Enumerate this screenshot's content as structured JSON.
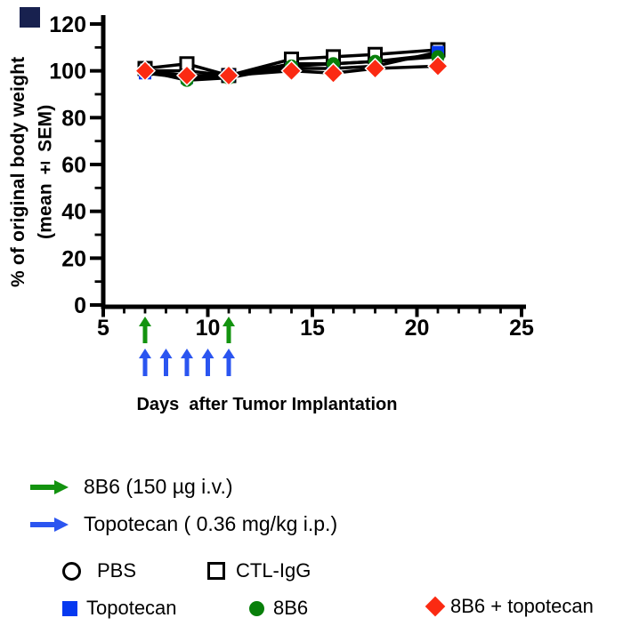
{
  "figure": {
    "x_axis_title": "Days  after Tumor Implantation",
    "y_axis_title_line1": "% of original body weight",
    "y_axis_title_line2": "(mean ± SEM)"
  },
  "colors": {
    "blue": "#0639f0",
    "green": "#087f0a",
    "red": "#fb2a12",
    "arrow_green": "#13930f",
    "arrow_blue": "#2b55f0",
    "axis": "#000000",
    "corner_square": "#18214f"
  },
  "treatment_legend": [
    {
      "arrow": "green-right-arrow",
      "label": "8B6 (150 µg i.v.)"
    },
    {
      "arrow": "blue-right-arrow",
      "label": "Topotecan ( 0.36 mg/kg i.p.)"
    }
  ],
  "series_legend": [
    {
      "marker": "circle-open",
      "label": "PBS"
    },
    {
      "marker": "square-open",
      "label": "CTL-IgG"
    },
    {
      "marker": "square-blue",
      "label": "Topotecan"
    },
    {
      "marker": "circle-green",
      "label": "8B6"
    },
    {
      "marker": "diamond-red",
      "label": "8B6 + topotecan"
    }
  ],
  "chart_data": {
    "type": "line",
    "title": "",
    "xlabel": "Days  after Tumor Implantation",
    "ylabel": "% of original body weight (mean ± SEM)",
    "x": [
      7,
      9,
      11,
      14,
      16,
      18,
      21
    ],
    "series": [
      {
        "name": "PBS",
        "marker": "circle-open",
        "color": "#000000",
        "line_color": "#000000",
        "values": [
          100,
          100,
          98,
          103,
          103,
          104,
          107
        ]
      },
      {
        "name": "CTL-IgG",
        "marker": "square-open",
        "color": "#000000",
        "line_color": "#000000",
        "values": [
          101,
          103,
          98,
          105,
          106,
          107,
          109
        ]
      },
      {
        "name": "Topotecan",
        "marker": "square",
        "color": "#0639f0",
        "line_color": "#000000",
        "values": [
          99,
          97,
          98,
          101,
          101,
          102,
          108
        ]
      },
      {
        "name": "8B6",
        "marker": "circle",
        "color": "#087f0a",
        "line_color": "#000000",
        "values": [
          100,
          96,
          97,
          102,
          103,
          104,
          106
        ]
      },
      {
        "name": "8B6 + topotecan",
        "marker": "diamond",
        "color": "#fb2a12",
        "line_color": "#000000",
        "values": [
          100,
          98,
          98,
          100,
          99,
          101,
          102
        ]
      }
    ],
    "x_ticks": [
      5,
      10,
      15,
      20,
      25
    ],
    "y_ticks": [
      0,
      20,
      40,
      60,
      80,
      100,
      120
    ],
    "xlim": [
      5,
      25.5
    ],
    "ylim": [
      0,
      120
    ],
    "grid": false,
    "error_bar_sem": 2.5,
    "treatment_arrows": {
      "green_8B6_days": [
        7,
        11
      ],
      "blue_topotecan_days": [
        7,
        8,
        9,
        10,
        11
      ]
    }
  }
}
